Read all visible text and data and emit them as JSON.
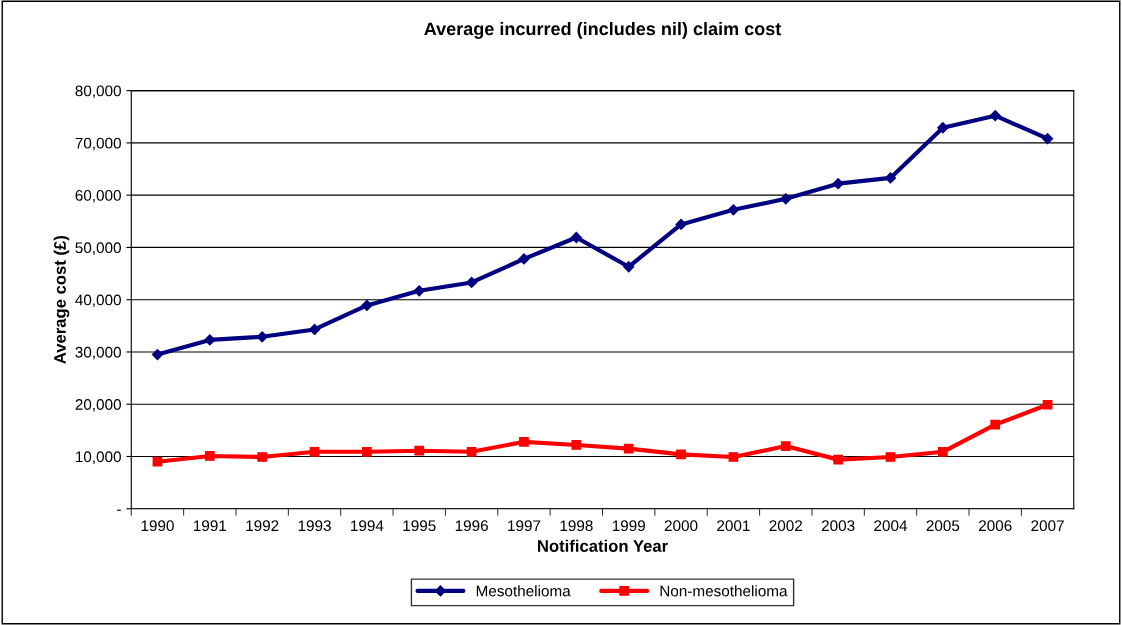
{
  "chart_data": {
    "type": "line",
    "title": "Average incurred (includes nil) claim cost",
    "xlabel": "Notification Year",
    "ylabel": "Average cost (£)",
    "categories": [
      "1990",
      "1991",
      "1992",
      "1993",
      "1994",
      "1995",
      "1996",
      "1997",
      "1998",
      "1999",
      "2000",
      "2001",
      "2002",
      "2003",
      "2004",
      "2005",
      "2006",
      "2007"
    ],
    "series": [
      {
        "name": "Mesothelioma",
        "color": "#000080",
        "marker": "diamond",
        "values": [
          29500,
          32300,
          32900,
          34300,
          38900,
          41700,
          43300,
          47800,
          51900,
          46300,
          54400,
          57200,
          59300,
          62200,
          63300,
          72900,
          75200,
          70800
        ]
      },
      {
        "name": "Non-mesothelioma",
        "color": "#ff0000",
        "marker": "square",
        "values": [
          9000,
          10100,
          9900,
          10900,
          10900,
          11100,
          10900,
          12800,
          12200,
          11500,
          10400,
          9900,
          12000,
          9400,
          9900,
          10900,
          16100,
          19900
        ]
      }
    ],
    "ylim": [
      0,
      80000
    ],
    "yticks": [
      {
        "value": 0,
        "label": "-"
      },
      {
        "value": 10000,
        "label": "10,000"
      },
      {
        "value": 20000,
        "label": "20,000"
      },
      {
        "value": 30000,
        "label": "30,000"
      },
      {
        "value": 40000,
        "label": "40,000"
      },
      {
        "value": 50000,
        "label": "50,000"
      },
      {
        "value": 60000,
        "label": "60,000"
      },
      {
        "value": 70000,
        "label": "70,000"
      },
      {
        "value": 80000,
        "label": "80,000"
      }
    ],
    "grid": "y",
    "legend": "bottom",
    "line_style": "solid"
  }
}
